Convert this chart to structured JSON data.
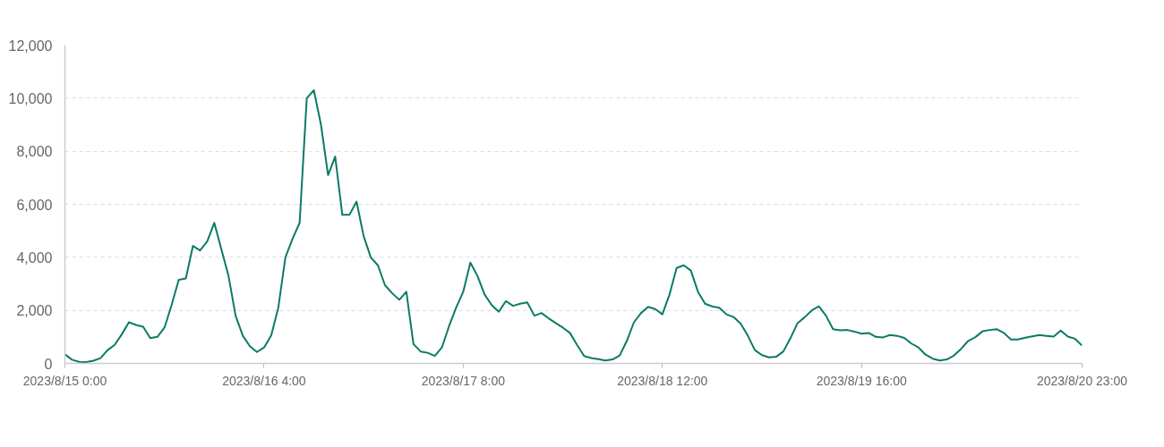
{
  "chart_data": {
    "type": "line",
    "color": "#0b7a67",
    "line_style": "solid",
    "grid": "y",
    "x": [
      "2023-08-15T00:00",
      "2023-08-15T01:00",
      "2023-08-15T02:00",
      "2023-08-15T03:00",
      "2023-08-15T04:00",
      "2023-08-15T05:00",
      "2023-08-15T06:00",
      "2023-08-15T07:00",
      "2023-08-15T08:00",
      "2023-08-15T09:00",
      "2023-08-15T10:00",
      "2023-08-15T11:00",
      "2023-08-15T12:00",
      "2023-08-15T13:00",
      "2023-08-15T14:00",
      "2023-08-15T15:00",
      "2023-08-15T16:00",
      "2023-08-15T17:00",
      "2023-08-15T18:00",
      "2023-08-15T19:00",
      "2023-08-15T20:00",
      "2023-08-15T21:00",
      "2023-08-15T22:00",
      "2023-08-15T23:00",
      "2023-08-16T00:00",
      "2023-08-16T01:00",
      "2023-08-16T02:00",
      "2023-08-16T03:00",
      "2023-08-16T04:00",
      "2023-08-16T05:00",
      "2023-08-16T06:00",
      "2023-08-16T07:00",
      "2023-08-16T08:00",
      "2023-08-16T09:00",
      "2023-08-16T10:00",
      "2023-08-16T11:00",
      "2023-08-16T12:00",
      "2023-08-16T13:00",
      "2023-08-16T14:00",
      "2023-08-16T15:00",
      "2023-08-16T16:00",
      "2023-08-16T17:00",
      "2023-08-16T18:00",
      "2023-08-16T19:00",
      "2023-08-16T20:00",
      "2023-08-16T21:00",
      "2023-08-16T22:00",
      "2023-08-16T23:00",
      "2023-08-17T00:00",
      "2023-08-17T01:00",
      "2023-08-17T02:00",
      "2023-08-17T03:00",
      "2023-08-17T04:00",
      "2023-08-17T05:00",
      "2023-08-17T06:00",
      "2023-08-17T07:00",
      "2023-08-17T08:00",
      "2023-08-17T09:00",
      "2023-08-17T10:00",
      "2023-08-17T11:00",
      "2023-08-17T12:00",
      "2023-08-17T13:00",
      "2023-08-17T14:00",
      "2023-08-17T15:00",
      "2023-08-17T16:00",
      "2023-08-17T17:00",
      "2023-08-17T18:00",
      "2023-08-17T19:00",
      "2023-08-17T20:00",
      "2023-08-17T21:00",
      "2023-08-17T22:00",
      "2023-08-17T23:00",
      "2023-08-18T00:00",
      "2023-08-18T01:00",
      "2023-08-18T02:00",
      "2023-08-18T03:00",
      "2023-08-18T04:00",
      "2023-08-18T05:00",
      "2023-08-18T06:00",
      "2023-08-18T07:00",
      "2023-08-18T08:00",
      "2023-08-18T09:00",
      "2023-08-18T10:00",
      "2023-08-18T11:00",
      "2023-08-18T12:00",
      "2023-08-18T13:00",
      "2023-08-18T14:00",
      "2023-08-18T15:00",
      "2023-08-18T16:00",
      "2023-08-18T17:00",
      "2023-08-18T18:00",
      "2023-08-18T19:00",
      "2023-08-18T20:00",
      "2023-08-18T21:00",
      "2023-08-18T22:00",
      "2023-08-18T23:00",
      "2023-08-19T00:00",
      "2023-08-19T01:00",
      "2023-08-19T02:00",
      "2023-08-19T03:00",
      "2023-08-19T04:00",
      "2023-08-19T05:00",
      "2023-08-19T06:00",
      "2023-08-19T07:00",
      "2023-08-19T08:00",
      "2023-08-19T09:00",
      "2023-08-19T10:00",
      "2023-08-19T11:00",
      "2023-08-19T12:00",
      "2023-08-19T13:00",
      "2023-08-19T14:00",
      "2023-08-19T15:00",
      "2023-08-19T16:00",
      "2023-08-19T17:00",
      "2023-08-19T18:00",
      "2023-08-19T19:00",
      "2023-08-19T20:00",
      "2023-08-19T21:00",
      "2023-08-19T22:00",
      "2023-08-19T23:00",
      "2023-08-20T00:00",
      "2023-08-20T01:00",
      "2023-08-20T02:00",
      "2023-08-20T03:00",
      "2023-08-20T04:00",
      "2023-08-20T05:00",
      "2023-08-20T06:00",
      "2023-08-20T07:00",
      "2023-08-20T08:00",
      "2023-08-20T09:00",
      "2023-08-20T10:00",
      "2023-08-20T11:00",
      "2023-08-20T12:00",
      "2023-08-20T13:00",
      "2023-08-20T14:00",
      "2023-08-20T15:00",
      "2023-08-20T16:00",
      "2023-08-20T17:00",
      "2023-08-20T18:00",
      "2023-08-20T19:00",
      "2023-08-20T20:00",
      "2023-08-20T21:00",
      "2023-08-20T22:00",
      "2023-08-20T23:00"
    ],
    "values": [
      340,
      140,
      60,
      50,
      100,
      200,
      500,
      700,
      1100,
      1550,
      1450,
      1380,
      950,
      1000,
      1350,
      2200,
      3150,
      3200,
      4430,
      4260,
      4600,
      5300,
      4300,
      3300,
      1800,
      1050,
      650,
      430,
      600,
      1050,
      2100,
      4000,
      4700,
      5300,
      10000,
      10300,
      9000,
      7100,
      7800,
      5600,
      5600,
      6100,
      4800,
      4000,
      3700,
      2950,
      2650,
      2400,
      2700,
      730,
      450,
      400,
      280,
      600,
      1400,
      2100,
      2700,
      3800,
      3300,
      2600,
      2200,
      1950,
      2350,
      2170,
      2250,
      2300,
      1800,
      1900,
      1700,
      1520,
      1350,
      1150,
      700,
      280,
      200,
      160,
      110,
      150,
      300,
      850,
      1550,
      1900,
      2130,
      2050,
      1850,
      2600,
      3600,
      3700,
      3500,
      2700,
      2250,
      2150,
      2100,
      1850,
      1750,
      1500,
      1050,
      500,
      310,
      230,
      250,
      450,
      950,
      1520,
      1740,
      2000,
      2150,
      1800,
      1290,
      1250,
      1260,
      1200,
      1120,
      1150,
      1000,
      980,
      1070,
      1040,
      960,
      750,
      600,
      330,
      180,
      110,
      150,
      300,
      550,
      850,
      990,
      1210,
      1260,
      1290,
      1150,
      900,
      900,
      970,
      1020,
      1070,
      1040,
      1010,
      1240,
      1010,
      930,
      670
    ],
    "xlim": [
      "2023-08-15T00:00",
      "2023-08-20T23:00"
    ],
    "xticks": [
      {
        "value": "2023-08-15T00:00",
        "label": "2023/8/15 0:00"
      },
      {
        "value": "2023-08-16T04:00",
        "label": "2023/8/16 4:00"
      },
      {
        "value": "2023-08-17T08:00",
        "label": "2023/8/17 8:00"
      },
      {
        "value": "2023-08-18T12:00",
        "label": "2023/8/18 12:00"
      },
      {
        "value": "2023-08-19T16:00",
        "label": "2023/8/19 16:00"
      },
      {
        "value": "2023-08-20T23:00",
        "label": "2023/8/20 23:00"
      }
    ],
    "ylim": [
      0,
      12000
    ],
    "yticks": [
      0,
      {
        "value": 2000,
        "label": "2,000"
      },
      {
        "value": 4000,
        "label": "4,000"
      },
      {
        "value": 6000,
        "label": "6,000"
      },
      {
        "value": 8000,
        "label": "8,000"
      },
      {
        "value": 10000,
        "label": "10,000"
      },
      {
        "value": 12000,
        "label": "12,000"
      }
    ]
  }
}
